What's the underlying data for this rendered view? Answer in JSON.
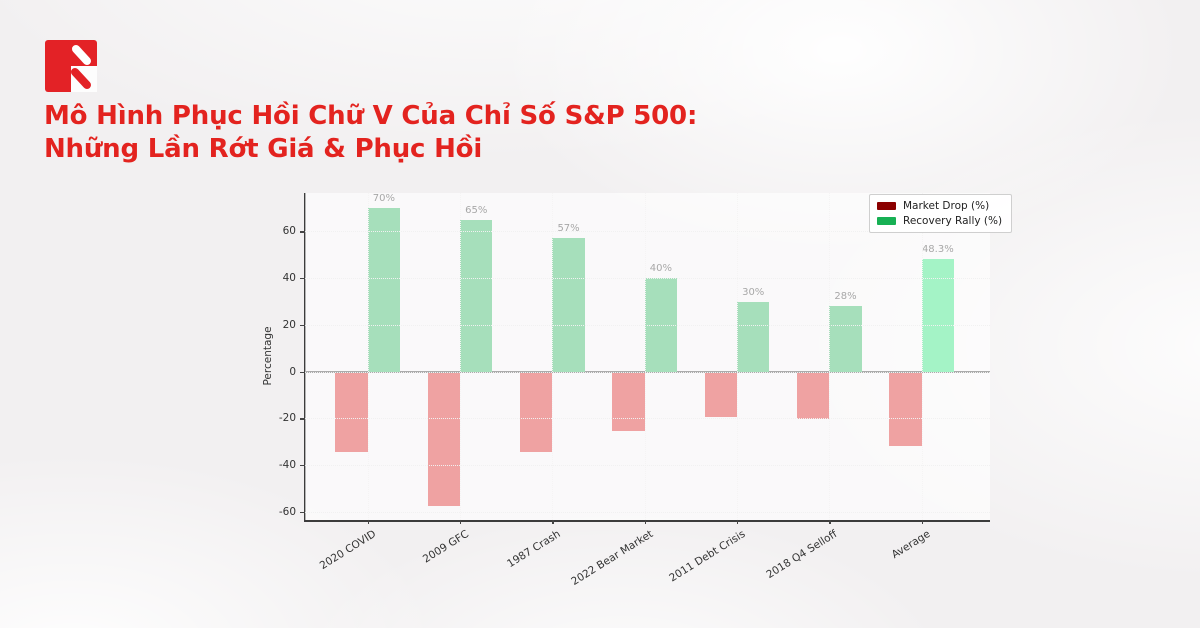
{
  "page": {
    "background_color": "#f2f0f1"
  },
  "logo": {
    "icon": "red-square-double-slash-arrow",
    "color": "#e32226"
  },
  "header": {
    "title_line1": "Mô Hình Phục Hồi Chữ V Của Chỉ Số S&P 500:",
    "title_line2": "Những Lần Rớt Giá & Phục Hồi",
    "title_color": "#e3231f"
  },
  "chart_data": {
    "type": "bar",
    "categories": [
      "2020 COVID",
      "2009 GFC",
      "1987 Crash",
      "2022 Bear Market",
      "2011 Debt Crisis",
      "2018 Q4 Selloff",
      "Average"
    ],
    "series": [
      {
        "name": "Market Drop (%)",
        "color": "#d60d0d",
        "legend_color": "#8b0000",
        "values": [
          -34,
          -57,
          -34,
          -25,
          -19,
          -20,
          -31.5
        ]
      },
      {
        "name": "Recovery Rally (%)",
        "color": "#15ab4e",
        "legend_color": "#17b054",
        "highlight_color": "#10e06b",
        "highlight_index": 6,
        "values": [
          70,
          65,
          57,
          40,
          30,
          28,
          48.3
        ],
        "labels": [
          "70%",
          "65%",
          "57%",
          "40%",
          "30%",
          "28%",
          "48.3%"
        ]
      }
    ],
    "ylabel": "Percentage",
    "yticks": [
      -60,
      -40,
      -20,
      0,
      20,
      40,
      60
    ],
    "ylim": [
      -63.4,
      76.4
    ],
    "grid": true,
    "legend_position": "top-right"
  }
}
